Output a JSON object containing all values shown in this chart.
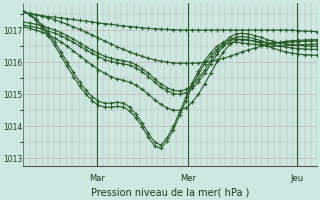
{
  "title": "Pression niveau de la mer( hPa )",
  "bg_color": "#cce8e0",
  "line_color": "#2a5e2a",
  "grid_color_h": "#c0b8b8",
  "grid_color_v": "#c8b0b0",
  "sep_color": "#2a5e2a",
  "ylim": [
    1012.75,
    1017.85
  ],
  "yticks": [
    1013,
    1014,
    1015,
    1016,
    1017
  ],
  "day_labels": [
    "Mar",
    "Mer",
    "Jeu"
  ],
  "day_positions": [
    0.25,
    0.56,
    0.93
  ],
  "n_vgrid": 48,
  "lines": [
    [
      1017.55,
      1017.5,
      1017.48,
      1017.45,
      1017.42,
      1017.4,
      1017.38,
      1017.35,
      1017.33,
      1017.3,
      1017.28,
      1017.25,
      1017.22,
      1017.2,
      1017.18,
      1017.15,
      1017.13,
      1017.11,
      1017.09,
      1017.07,
      1017.05,
      1017.04,
      1017.03,
      1017.02,
      1017.01,
      1017.0,
      1017.0,
      1017.0,
      1017.0,
      1017.0,
      1017.0,
      1017.0,
      1017.0,
      1017.0,
      1017.0,
      1017.0,
      1017.0,
      1017.0,
      1017.0,
      1017.0,
      1017.0,
      1017.0,
      1017.0,
      1017.0,
      1016.98,
      1016.97,
      1016.96,
      1016.95
    ],
    [
      1017.55,
      1017.52,
      1017.48,
      1017.43,
      1017.38,
      1017.32,
      1017.25,
      1017.18,
      1017.1,
      1017.02,
      1016.93,
      1016.84,
      1016.75,
      1016.66,
      1016.57,
      1016.48,
      1016.4,
      1016.32,
      1016.25,
      1016.18,
      1016.12,
      1016.07,
      1016.03,
      1016.0,
      1015.98,
      1015.97,
      1015.97,
      1015.97,
      1015.98,
      1016.0,
      1016.03,
      1016.07,
      1016.12,
      1016.18,
      1016.25,
      1016.32,
      1016.38,
      1016.44,
      1016.5,
      1016.55,
      1016.59,
      1016.62,
      1016.65,
      1016.67,
      1016.68,
      1016.69,
      1016.7,
      1016.7
    ],
    [
      1017.6,
      1017.5,
      1017.35,
      1017.15,
      1016.9,
      1016.62,
      1016.32,
      1016.0,
      1015.68,
      1015.38,
      1015.12,
      1014.92,
      1014.78,
      1014.72,
      1014.72,
      1014.75,
      1014.72,
      1014.6,
      1014.38,
      1014.1,
      1013.78,
      1013.5,
      1013.42,
      1013.65,
      1014.0,
      1014.45,
      1014.9,
      1015.35,
      1015.72,
      1016.05,
      1016.3,
      1016.5,
      1016.62,
      1016.7,
      1016.72,
      1016.7,
      1016.68,
      1016.65,
      1016.63,
      1016.6,
      1016.6,
      1016.6,
      1016.62,
      1016.63,
      1016.64,
      1016.65,
      1016.66,
      1016.67
    ],
    [
      1017.6,
      1017.48,
      1017.3,
      1017.08,
      1016.82,
      1016.52,
      1016.2,
      1015.87,
      1015.55,
      1015.25,
      1015.0,
      1014.8,
      1014.65,
      1014.6,
      1014.6,
      1014.62,
      1014.6,
      1014.48,
      1014.27,
      1013.98,
      1013.66,
      1013.38,
      1013.32,
      1013.55,
      1013.9,
      1014.35,
      1014.8,
      1015.25,
      1015.62,
      1015.95,
      1016.2,
      1016.4,
      1016.53,
      1016.6,
      1016.62,
      1016.6,
      1016.58,
      1016.55,
      1016.53,
      1016.5,
      1016.5,
      1016.5,
      1016.52,
      1016.53,
      1016.54,
      1016.55,
      1016.56,
      1016.57
    ],
    [
      1017.15,
      1017.12,
      1017.08,
      1017.03,
      1016.97,
      1016.9,
      1016.82,
      1016.72,
      1016.62,
      1016.5,
      1016.38,
      1016.27,
      1016.17,
      1016.08,
      1016.02,
      1015.98,
      1015.95,
      1015.9,
      1015.82,
      1015.7,
      1015.55,
      1015.38,
      1015.22,
      1015.1,
      1015.02,
      1015.0,
      1015.05,
      1015.18,
      1015.38,
      1015.65,
      1015.95,
      1016.25,
      1016.5,
      1016.68,
      1016.78,
      1016.8,
      1016.78,
      1016.73,
      1016.67,
      1016.6,
      1016.55,
      1016.5,
      1016.47,
      1016.44,
      1016.42,
      1016.41,
      1016.4,
      1016.4
    ],
    [
      1017.25,
      1017.22,
      1017.18,
      1017.13,
      1017.07,
      1017.0,
      1016.92,
      1016.82,
      1016.72,
      1016.6,
      1016.48,
      1016.37,
      1016.27,
      1016.18,
      1016.12,
      1016.08,
      1016.05,
      1016.0,
      1015.92,
      1015.8,
      1015.65,
      1015.48,
      1015.32,
      1015.2,
      1015.12,
      1015.1,
      1015.15,
      1015.28,
      1015.48,
      1015.75,
      1016.05,
      1016.35,
      1016.6,
      1016.78,
      1016.88,
      1016.9,
      1016.88,
      1016.83,
      1016.77,
      1016.7,
      1016.65,
      1016.6,
      1016.57,
      1016.54,
      1016.52,
      1016.51,
      1016.5,
      1016.5
    ],
    [
      1017.1,
      1017.05,
      1017.0,
      1016.93,
      1016.85,
      1016.75,
      1016.63,
      1016.5,
      1016.35,
      1016.2,
      1016.05,
      1015.9,
      1015.77,
      1015.65,
      1015.55,
      1015.48,
      1015.43,
      1015.37,
      1015.28,
      1015.15,
      1015.0,
      1014.83,
      1014.68,
      1014.57,
      1014.5,
      1014.5,
      1014.58,
      1014.75,
      1015.0,
      1015.32,
      1015.67,
      1016.02,
      1016.32,
      1016.55,
      1016.68,
      1016.72,
      1016.7,
      1016.65,
      1016.58,
      1016.5,
      1016.43,
      1016.37,
      1016.32,
      1016.28,
      1016.25,
      1016.23,
      1016.22,
      1016.22
    ]
  ]
}
